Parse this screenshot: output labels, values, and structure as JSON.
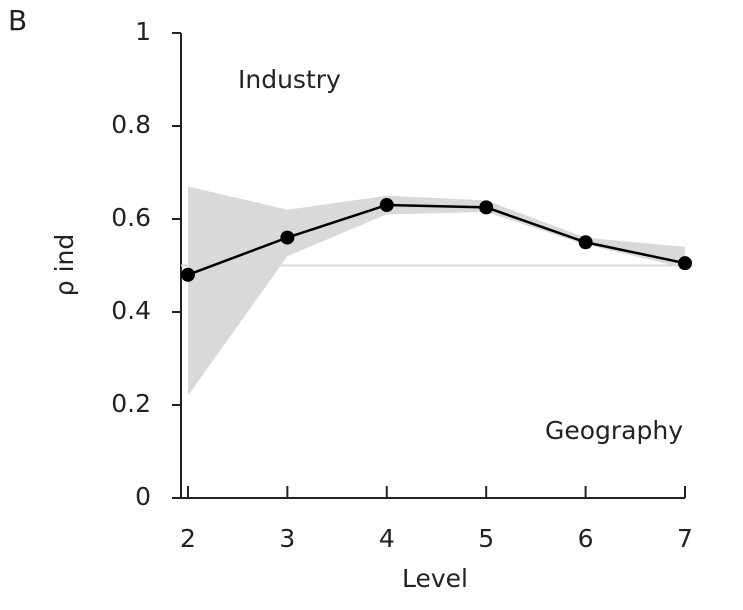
{
  "chart_data": {
    "type": "line",
    "panel_label": "B",
    "xlabel": "Level",
    "ylabel": "ρ ind",
    "x": [
      2,
      3,
      4,
      5,
      6,
      7
    ],
    "series": [
      {
        "values": [
          0.48,
          0.56,
          0.63,
          0.625,
          0.55,
          0.505
        ],
        "color": "#000000",
        "lower": [
          0.22,
          0.52,
          0.61,
          0.615,
          0.545,
          0.495
        ],
        "upper": [
          0.67,
          0.62,
          0.65,
          0.64,
          0.56,
          0.54
        ],
        "band_color": "#d9d9d9"
      }
    ],
    "reference_line": 0.5,
    "reference_color": "#d9d9d9",
    "annotations": [
      "Industry",
      "Geography"
    ],
    "xlim": [
      1.93,
      7
    ],
    "ylim": [
      0,
      1
    ],
    "xticks": [
      2,
      3,
      4,
      5,
      6,
      7
    ],
    "yticks": [
      0,
      0.2,
      0.4,
      0.6,
      0.8,
      1
    ]
  }
}
